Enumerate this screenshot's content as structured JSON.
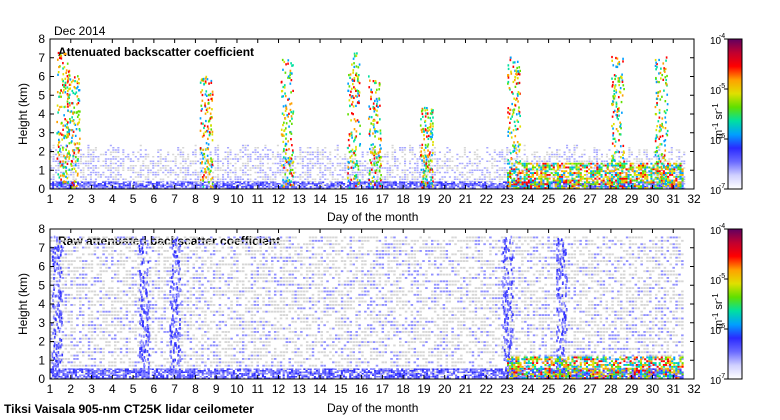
{
  "header": {
    "date_label": "Dec 2014"
  },
  "footer": {
    "instrument_label": "Tiksi Vaisala 905-nm CT25K lidar ceilometer"
  },
  "colorbar": {
    "ticks": [
      "10",
      "10",
      "10",
      "10"
    ],
    "exponents": [
      "-4",
      "-5",
      "-6",
      "-7"
    ],
    "unit_label": "m",
    "unit_exp1": "-1",
    "unit_sr": "sr",
    "unit_exp2": "-1",
    "stops": [
      "#ffffff",
      "#d0d0ff",
      "#6a6aff",
      "#2a2aff",
      "#00a0ff",
      "#00e0a0",
      "#60e000",
      "#e0e000",
      "#ffa000",
      "#ff0000",
      "#c00030",
      "#600060"
    ]
  },
  "chart_data": [
    {
      "type": "heatmap",
      "title": "Attenuated backscatter coefficient",
      "xlabel": "Day of the month",
      "ylabel": "Height (km)",
      "xlim": [
        1,
        32
      ],
      "ylim": [
        0,
        8
      ],
      "xticks": [
        "1",
        "2",
        "3",
        "4",
        "5",
        "6",
        "7",
        "8",
        "9",
        "10",
        "11",
        "12",
        "13",
        "14",
        "15",
        "16",
        "17",
        "18",
        "19",
        "20",
        "21",
        "22",
        "23",
        "24",
        "25",
        "26",
        "27",
        "28",
        "29",
        "30",
        "31",
        "32"
      ],
      "yticks": [
        "0",
        "1",
        "2",
        "3",
        "4",
        "5",
        "6",
        "7",
        "8"
      ],
      "color_scale": {
        "min": "1e-7",
        "max": "1e-4",
        "scale": "log"
      },
      "cloud_layers": [
        {
          "day": 1.6,
          "top_km": 7.2
        },
        {
          "day": 2.1,
          "top_km": 6.0
        },
        {
          "day": 8.5,
          "top_km": 6.0
        },
        {
          "day": 12.4,
          "top_km": 7.0
        },
        {
          "day": 15.6,
          "top_km": 7.2
        },
        {
          "day": 16.6,
          "top_km": 6.0
        },
        {
          "day": 19.1,
          "top_km": 4.3
        },
        {
          "day": 23.3,
          "top_km": 7.0
        },
        {
          "day": 28.3,
          "top_km": 7.0
        },
        {
          "day": 30.4,
          "top_km": 7.0
        }
      ]
    },
    {
      "type": "heatmap",
      "title": "Raw attenuated backscatter coefficient",
      "xlabel": "Day of the month",
      "ylabel": "Height (km)",
      "xlim": [
        1,
        32
      ],
      "ylim": [
        0,
        8
      ],
      "xticks": [
        "1",
        "2",
        "3",
        "4",
        "5",
        "6",
        "7",
        "8",
        "9",
        "10",
        "11",
        "12",
        "13",
        "14",
        "15",
        "16",
        "17",
        "18",
        "19",
        "20",
        "21",
        "22",
        "23",
        "24",
        "25",
        "26",
        "27",
        "28",
        "29",
        "30",
        "31",
        "32"
      ],
      "yticks": [
        "0",
        "1",
        "2",
        "3",
        "4",
        "5",
        "6",
        "7",
        "8"
      ],
      "color_scale": {
        "min": "1e-7",
        "max": "1e-4",
        "scale": "log"
      },
      "noise_ceiling_km": 7.5,
      "strong_columns": [
        {
          "day": 1.3
        },
        {
          "day": 5.5
        },
        {
          "day": 7.0
        },
        {
          "day": 23.0
        },
        {
          "day": 25.6
        }
      ]
    }
  ]
}
